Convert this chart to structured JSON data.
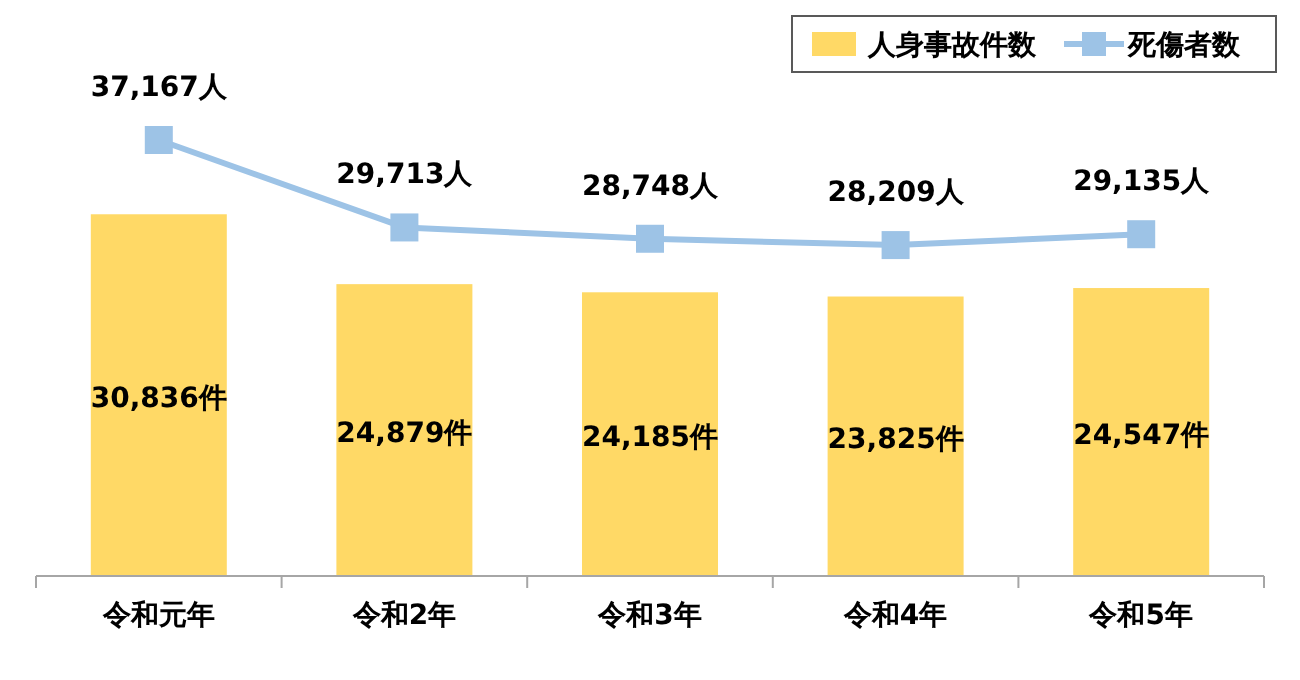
{
  "chart_data": {
    "type": "bar",
    "legend": "top right",
    "marker": "square",
    "categories": [
      "令和元年",
      "令和2年",
      "令和3年",
      "令和4年",
      "令和5年"
    ],
    "series": [
      {
        "name": "人身事故件数",
        "color": "#ffd966",
        "values": [
          30836,
          24879,
          24185,
          23825,
          24547
        ],
        "value_labels": [
          "30,836件",
          "24,879件",
          "24,185件",
          "23,825件",
          "24,547件"
        ]
      },
      {
        "name": "死傷者数",
        "type": "line",
        "color": "#9dc3e6",
        "values": [
          37167,
          29713,
          28748,
          28209,
          29135
        ],
        "value_labels": [
          "37,167人",
          "29,713人",
          "28,748人",
          "28,209人",
          "29,135人"
        ]
      }
    ]
  }
}
